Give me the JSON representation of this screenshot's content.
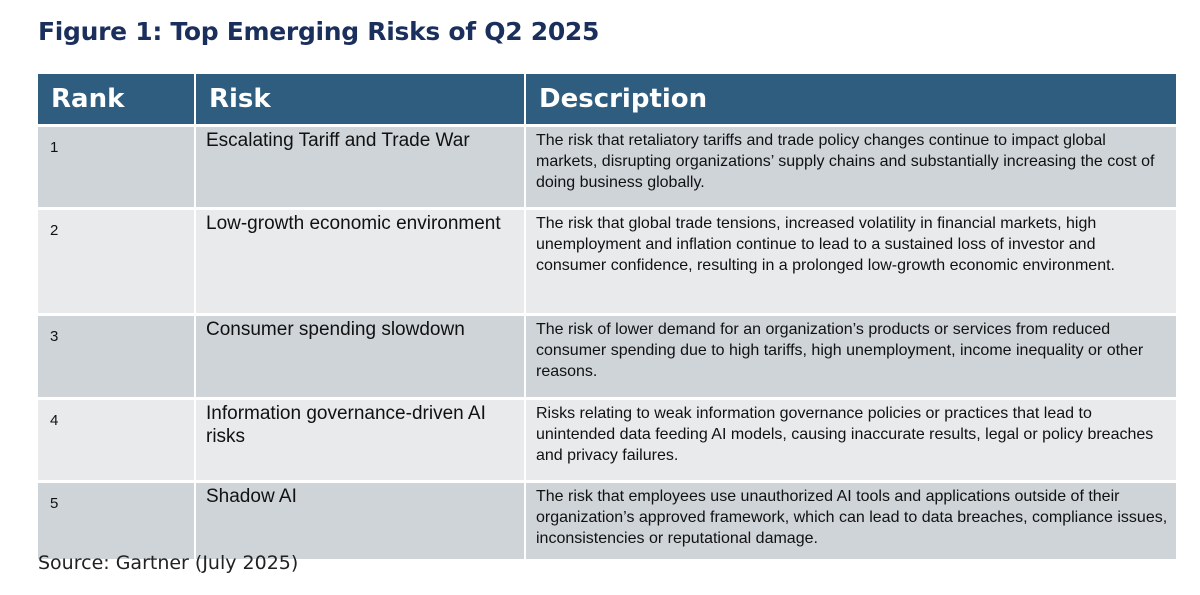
{
  "figure": {
    "title": "Figure 1: Top Emerging Risks of Q2 2025",
    "source": "Source: Gartner (July 2025)"
  },
  "table": {
    "headers": {
      "rank": "Rank",
      "risk": "Risk",
      "description": "Description"
    },
    "rows": [
      {
        "rank": "1",
        "risk": "Escalating Tariff and Trade War",
        "description": "The risk that retaliatory tariffs and trade policy changes continue to impact global markets, disrupting organizations’ supply chains and substantially increasing the cost of doing business globally."
      },
      {
        "rank": "2",
        "risk": "Low-growth economic environment",
        "description": "The risk that global trade tensions, increased volatility in financial markets, high unemployment and inflation continue to lead to a sustained loss of investor and consumer confidence, resulting in a prolonged low-growth economic environment."
      },
      {
        "rank": "3",
        "risk": "Consumer spending slowdown",
        "description": "The risk of lower demand for an organization’s products or services from reduced consumer spending due to high tariffs, high unemployment, income inequality or other reasons."
      },
      {
        "rank": "4",
        "risk": "Information governance-driven AI risks",
        "description": "Risks relating to weak information governance policies or practices that lead to unintended data feeding AI models, causing inaccurate results, legal or policy breaches and privacy failures."
      },
      {
        "rank": "5",
        "risk": "Shadow AI",
        "description": "The risk that employees use unauthorized AI tools and applications outside of their organization’s approved framework, which can lead to data breaches, compliance issues, inconsistencies or reputational damage."
      }
    ]
  },
  "colors": {
    "title": "#1b2f5c",
    "header_bg": "#2e5d7f",
    "row_odd_bg": "#cfd4d9",
    "row_even_bg": "#e8eaec"
  }
}
